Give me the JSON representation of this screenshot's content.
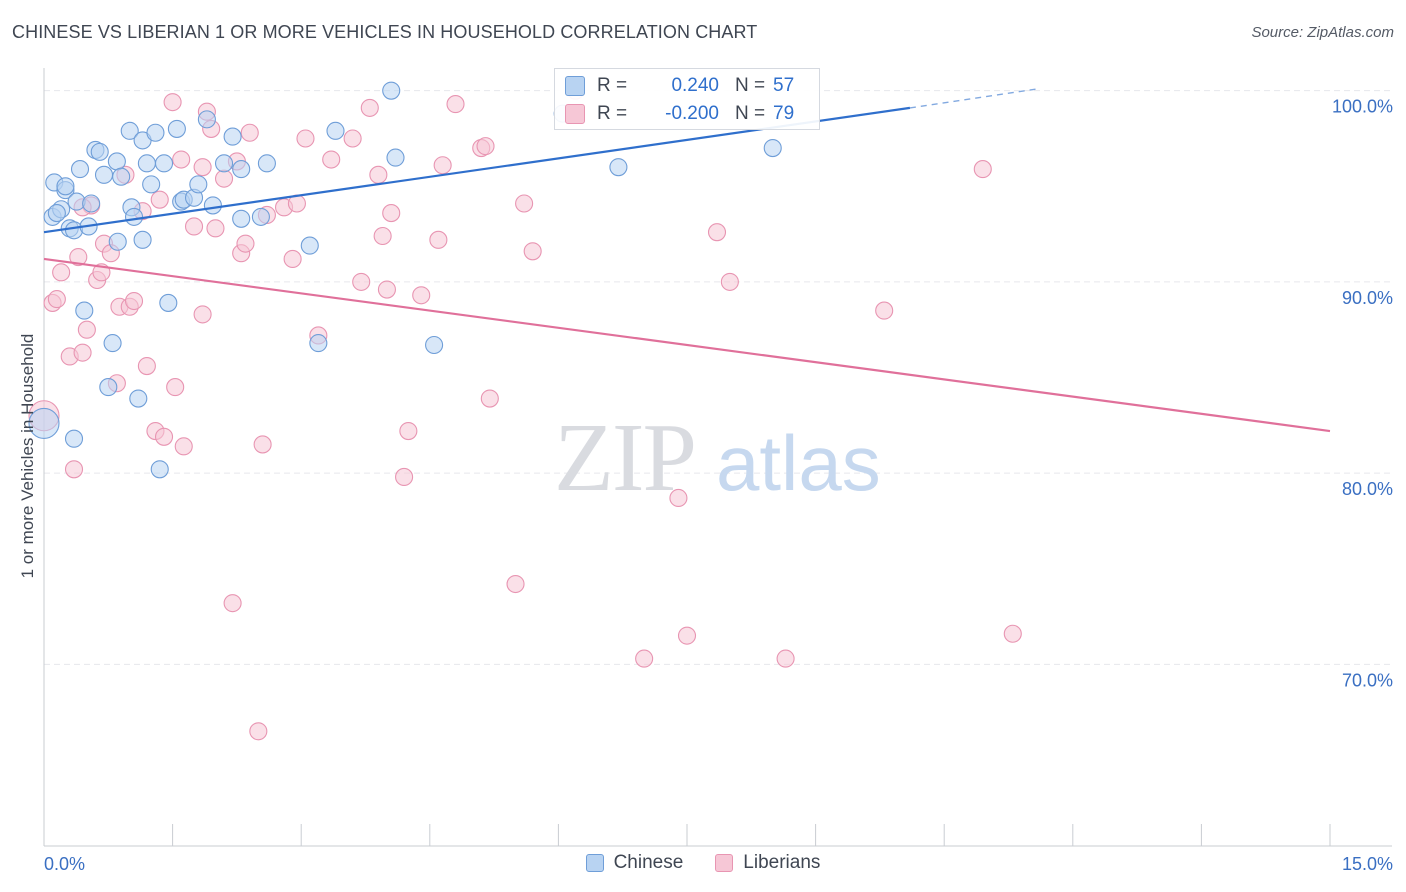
{
  "title": "CHINESE VS LIBERIAN 1 OR MORE VEHICLES IN HOUSEHOLD CORRELATION CHART",
  "source": "Source: ZipAtlas.com",
  "watermark": {
    "zip": "ZIP",
    "atlas": "atlas"
  },
  "colors": {
    "chinese_fill": "#b8d3f2",
    "chinese_stroke": "#6f9ed8",
    "chinese_line": "#2f6fcc",
    "liberian_fill": "#f6c7d6",
    "liberian_stroke": "#e895b2",
    "liberian_line": "#e0709a",
    "axis_text": "#3a6fc2",
    "grid": "#e6e8ec"
  },
  "legend_box": {
    "rows": [
      {
        "series": "Chinese",
        "r_label": "R =",
        "r_value": "0.240",
        "n_label": "N =",
        "n_value": "57"
      },
      {
        "series": "Liberians",
        "r_label": "R =",
        "r_value": "-0.200",
        "n_label": "N =",
        "n_value": "79"
      }
    ]
  },
  "chart_data": {
    "type": "scatter",
    "title": "CHINESE VS LIBERIAN 1 OR MORE VEHICLES IN HOUSEHOLD CORRELATION CHART",
    "xlabel": "",
    "ylabel": "1 or more Vehicles in Household",
    "xlim": [
      0,
      15
    ],
    "ylim": [
      60.5,
      101.5
    ],
    "x_tick_labels": [
      "0.0%",
      "15.0%"
    ],
    "y_ticks": [
      70,
      80,
      90,
      100
    ],
    "y_tick_labels": [
      "70.0%",
      "80.0%",
      "90.0%",
      "100.0%"
    ],
    "grid": true,
    "legend_position": "bottom-center",
    "series": [
      {
        "name": "Chinese",
        "r": 0.24,
        "n": 57,
        "trend": {
          "x0": 0,
          "y0": 92.6,
          "x1": 10.1,
          "y1": 99.1,
          "dashed_to_x": 11.6,
          "dashed_to_y": 100.1
        },
        "points": [
          [
            0.0,
            82.6
          ],
          [
            0.1,
            93.4
          ],
          [
            0.12,
            95.2
          ],
          [
            0.2,
            93.8
          ],
          [
            0.25,
            94.8
          ],
          [
            0.25,
            95.0
          ],
          [
            0.3,
            92.8
          ],
          [
            0.35,
            92.7
          ],
          [
            0.35,
            81.8
          ],
          [
            0.38,
            94.2
          ],
          [
            0.42,
            95.9
          ],
          [
            0.47,
            88.5
          ],
          [
            0.52,
            92.9
          ],
          [
            0.55,
            94.1
          ],
          [
            0.6,
            96.9
          ],
          [
            0.65,
            96.8
          ],
          [
            0.7,
            95.6
          ],
          [
            0.75,
            84.5
          ],
          [
            0.8,
            86.8
          ],
          [
            0.85,
            96.3
          ],
          [
            0.86,
            92.1
          ],
          [
            0.9,
            95.5
          ],
          [
            1.0,
            97.9
          ],
          [
            1.02,
            93.9
          ],
          [
            1.05,
            93.4
          ],
          [
            1.1,
            83.9
          ],
          [
            1.15,
            97.4
          ],
          [
            1.2,
            96.2
          ],
          [
            1.25,
            95.1
          ],
          [
            1.3,
            97.8
          ],
          [
            1.35,
            80.2
          ],
          [
            1.4,
            96.2
          ],
          [
            1.45,
            88.9
          ],
          [
            1.55,
            98.0
          ],
          [
            1.6,
            94.2
          ],
          [
            1.63,
            94.3
          ],
          [
            1.75,
            94.4
          ],
          [
            1.8,
            95.1
          ],
          [
            1.9,
            98.5
          ],
          [
            1.97,
            94.0
          ],
          [
            2.1,
            96.2
          ],
          [
            2.2,
            97.6
          ],
          [
            2.3,
            93.3
          ],
          [
            2.3,
            95.9
          ],
          [
            2.53,
            93.4
          ],
          [
            2.6,
            96.2
          ],
          [
            3.1,
            91.9
          ],
          [
            3.2,
            86.8
          ],
          [
            3.4,
            97.9
          ],
          [
            4.05,
            100.0
          ],
          [
            4.1,
            96.5
          ],
          [
            4.55,
            86.7
          ],
          [
            6.05,
            98.8
          ],
          [
            6.7,
            96.0
          ],
          [
            8.5,
            97.0
          ],
          [
            0.15,
            93.6
          ],
          [
            1.15,
            92.2
          ]
        ]
      },
      {
        "name": "Liberians",
        "r": -0.2,
        "n": 79,
        "trend": {
          "x0": 0,
          "y0": 91.2,
          "x1": 15.0,
          "y1": 82.2
        },
        "points": [
          [
            0.0,
            83.0
          ],
          [
            0.1,
            88.9
          ],
          [
            0.15,
            89.1
          ],
          [
            0.2,
            90.5
          ],
          [
            0.3,
            86.1
          ],
          [
            0.35,
            80.2
          ],
          [
            0.4,
            91.3
          ],
          [
            0.45,
            86.3
          ],
          [
            0.5,
            87.5
          ],
          [
            0.55,
            94.0
          ],
          [
            0.62,
            90.1
          ],
          [
            0.67,
            90.5
          ],
          [
            0.7,
            92.0
          ],
          [
            0.78,
            91.5
          ],
          [
            0.85,
            84.7
          ],
          [
            0.88,
            88.7
          ],
          [
            0.95,
            95.6
          ],
          [
            1.0,
            88.7
          ],
          [
            1.05,
            89.0
          ],
          [
            1.15,
            93.7
          ],
          [
            1.2,
            85.6
          ],
          [
            1.3,
            82.2
          ],
          [
            1.35,
            94.3
          ],
          [
            1.4,
            81.9
          ],
          [
            1.5,
            99.4
          ],
          [
            1.53,
            84.5
          ],
          [
            1.6,
            96.4
          ],
          [
            1.63,
            81.4
          ],
          [
            1.75,
            92.9
          ],
          [
            1.85,
            96.0
          ],
          [
            1.85,
            88.3
          ],
          [
            1.9,
            98.9
          ],
          [
            1.95,
            98.0
          ],
          [
            2.0,
            92.8
          ],
          [
            2.1,
            95.4
          ],
          [
            2.2,
            73.2
          ],
          [
            2.25,
            96.3
          ],
          [
            2.3,
            91.5
          ],
          [
            2.35,
            92.0
          ],
          [
            2.4,
            97.8
          ],
          [
            2.5,
            66.5
          ],
          [
            2.55,
            81.5
          ],
          [
            2.6,
            93.5
          ],
          [
            2.8,
            93.9
          ],
          [
            2.9,
            91.2
          ],
          [
            2.95,
            94.1
          ],
          [
            3.05,
            97.5
          ],
          [
            3.2,
            87.2
          ],
          [
            3.35,
            96.4
          ],
          [
            3.6,
            97.5
          ],
          [
            3.7,
            90.0
          ],
          [
            3.8,
            99.1
          ],
          [
            3.9,
            95.6
          ],
          [
            3.95,
            92.4
          ],
          [
            4.0,
            89.6
          ],
          [
            4.05,
            93.6
          ],
          [
            4.2,
            79.8
          ],
          [
            4.25,
            82.2
          ],
          [
            4.4,
            89.3
          ],
          [
            4.6,
            92.2
          ],
          [
            4.65,
            96.1
          ],
          [
            4.8,
            99.3
          ],
          [
            5.1,
            97.0
          ],
          [
            5.15,
            97.1
          ],
          [
            5.2,
            83.9
          ],
          [
            5.5,
            74.2
          ],
          [
            5.6,
            94.1
          ],
          [
            5.7,
            91.6
          ],
          [
            6.2,
            100.0
          ],
          [
            7.0,
            70.3
          ],
          [
            7.4,
            78.7
          ],
          [
            7.5,
            71.5
          ],
          [
            7.85,
            92.6
          ],
          [
            8.0,
            90.0
          ],
          [
            8.65,
            70.3
          ],
          [
            9.8,
            88.5
          ],
          [
            10.95,
            95.9
          ],
          [
            11.3,
            71.6
          ],
          [
            0.45,
            93.9
          ]
        ]
      }
    ]
  }
}
